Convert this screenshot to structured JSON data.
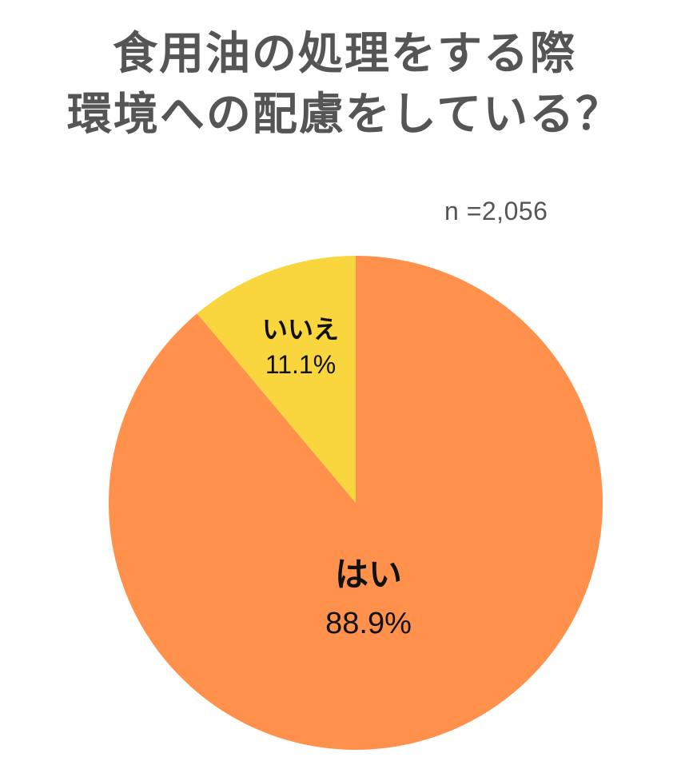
{
  "chart_data": {
    "type": "pie",
    "title_lines": [
      "食用油の処理をする際",
      "環境への配慮をしている？"
    ],
    "note": "n =2,056",
    "start": "12 o'clock, clockwise",
    "slices": [
      {
        "label": "はい",
        "value": 88.9,
        "value_label": "88.9%",
        "color": "#FF914D"
      },
      {
        "label": "いいえ",
        "value": 11.1,
        "value_label": "11.1%",
        "color": "#F9D63D"
      }
    ]
  }
}
